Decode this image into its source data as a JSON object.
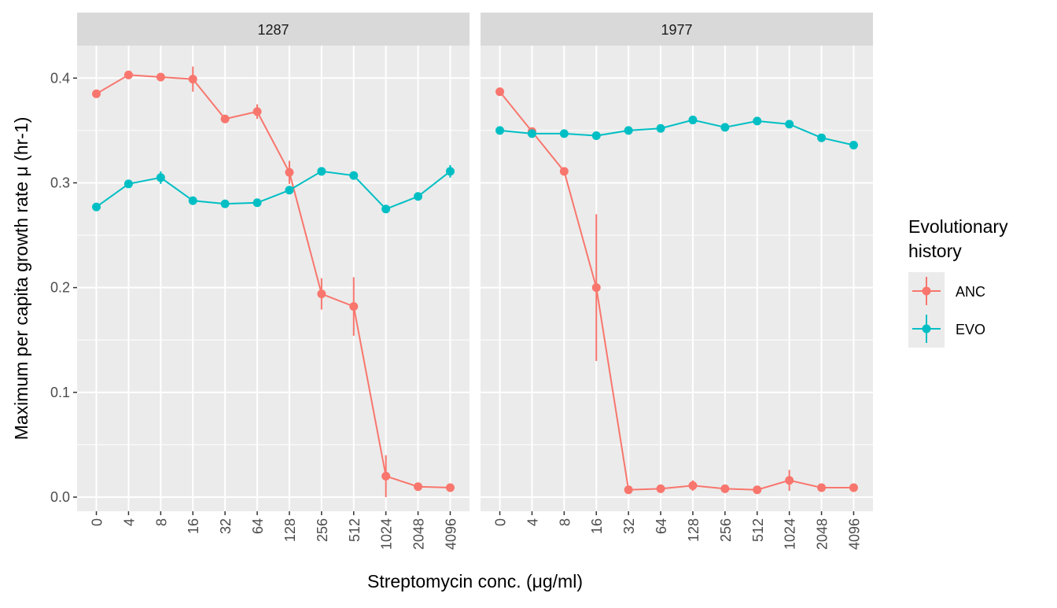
{
  "chart_data": {
    "type": "line",
    "xlabel": "Streptomycin conc. (μg/ml)",
    "ylabel": "Maximum per capita growth rate μ (hr-1)",
    "ylim": [
      -0.0135,
      0.431
    ],
    "yticks": [
      0.0,
      0.1,
      0.2,
      0.3,
      0.4
    ],
    "ytick_labels": [
      "0.0",
      "0.1",
      "0.2",
      "0.3",
      "0.4"
    ],
    "categories": [
      "0",
      "4",
      "8",
      "16",
      "32",
      "64",
      "128",
      "256",
      "512",
      "1024",
      "2048",
      "4096"
    ],
    "grid": true,
    "legend": {
      "title_lines": [
        "Evolutionary",
        "history"
      ],
      "placement": "right",
      "entries": [
        {
          "name": "ANC",
          "color": "#F8766D"
        },
        {
          "name": "EVO",
          "color": "#00BFC4"
        }
      ]
    },
    "panels": [
      {
        "strip": "1287",
        "series": [
          {
            "name": "ANC",
            "color": "#F8766D",
            "values": [
              0.385,
              0.403,
              0.401,
              0.399,
              0.361,
              0.368,
              0.31,
              0.194,
              0.182,
              0.02,
              0.01,
              0.009
            ],
            "errors": [
              0.002,
              0.004,
              0.003,
              0.012,
              0.004,
              0.007,
              0.011,
              0.015,
              0.028,
              0.02,
              0.002,
              0.002
            ]
          },
          {
            "name": "EVO",
            "color": "#00BFC4",
            "values": [
              0.277,
              0.299,
              0.305,
              0.283,
              0.28,
              0.281,
              0.293,
              0.311,
              0.307,
              0.275,
              0.287,
              0.311
            ],
            "errors": [
              0.002,
              0.002,
              0.006,
              0.002,
              0.002,
              0.003,
              0.002,
              0.002,
              0.003,
              0.002,
              0.002,
              0.006
            ]
          }
        ]
      },
      {
        "strip": "1977",
        "series": [
          {
            "name": "ANC",
            "color": "#F8766D",
            "values": [
              0.387,
              0.349,
              0.311,
              0.2,
              0.007,
              0.008,
              0.011,
              0.008,
              0.007,
              0.016,
              0.009,
              0.009
            ],
            "errors": [
              0.002,
              0.002,
              0.002,
              0.07,
              0.002,
              0.002,
              0.005,
              0.002,
              0.002,
              0.01,
              0.002,
              0.002
            ]
          },
          {
            "name": "EVO",
            "color": "#00BFC4",
            "values": [
              0.35,
              0.347,
              0.347,
              0.345,
              0.35,
              0.352,
              0.36,
              0.353,
              0.359,
              0.356,
              0.343,
              0.336
            ],
            "errors": [
              0.002,
              0.002,
              0.002,
              0.002,
              0.002,
              0.002,
              0.002,
              0.002,
              0.002,
              0.002,
              0.002,
              0.002
            ]
          }
        ]
      }
    ]
  }
}
